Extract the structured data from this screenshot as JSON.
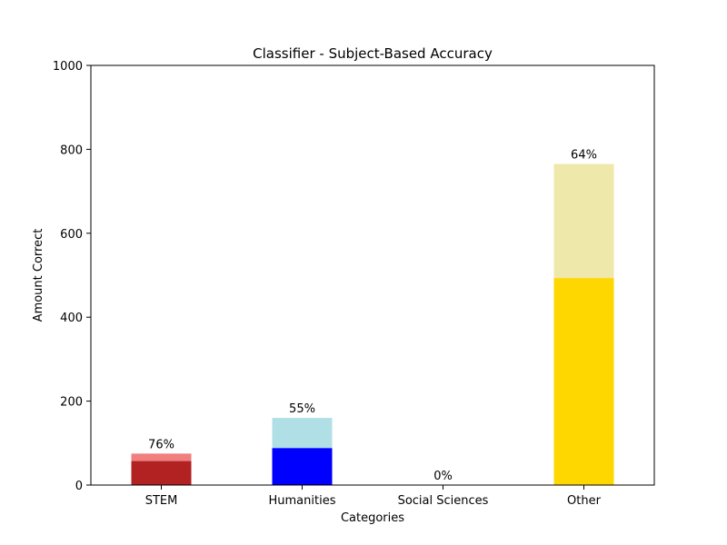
{
  "chart_data": {
    "type": "bar",
    "stacked": "overlay",
    "title": "Classifier - Subject-Based Accuracy",
    "xlabel": "Categories",
    "ylabel": "Amount Correct",
    "ylim": [
      0,
      1000
    ],
    "yticks": [
      0,
      200,
      400,
      600,
      800,
      1000
    ],
    "grid": false,
    "categories": [
      "STEM",
      "Humanities",
      "Social Sciences",
      "Other"
    ],
    "total": [
      75,
      160,
      0,
      765
    ],
    "correct": [
      57,
      88,
      0,
      493
    ],
    "data_labels": [
      "76%",
      "55%",
      "0%",
      "64%"
    ],
    "colors": {
      "correct": [
        "#b22222",
        "#0000ff",
        "#888888",
        "#ffd700"
      ],
      "total": [
        "#f08080",
        "#b0e0e6",
        "#cccccc",
        "#eee8aa"
      ]
    }
  }
}
